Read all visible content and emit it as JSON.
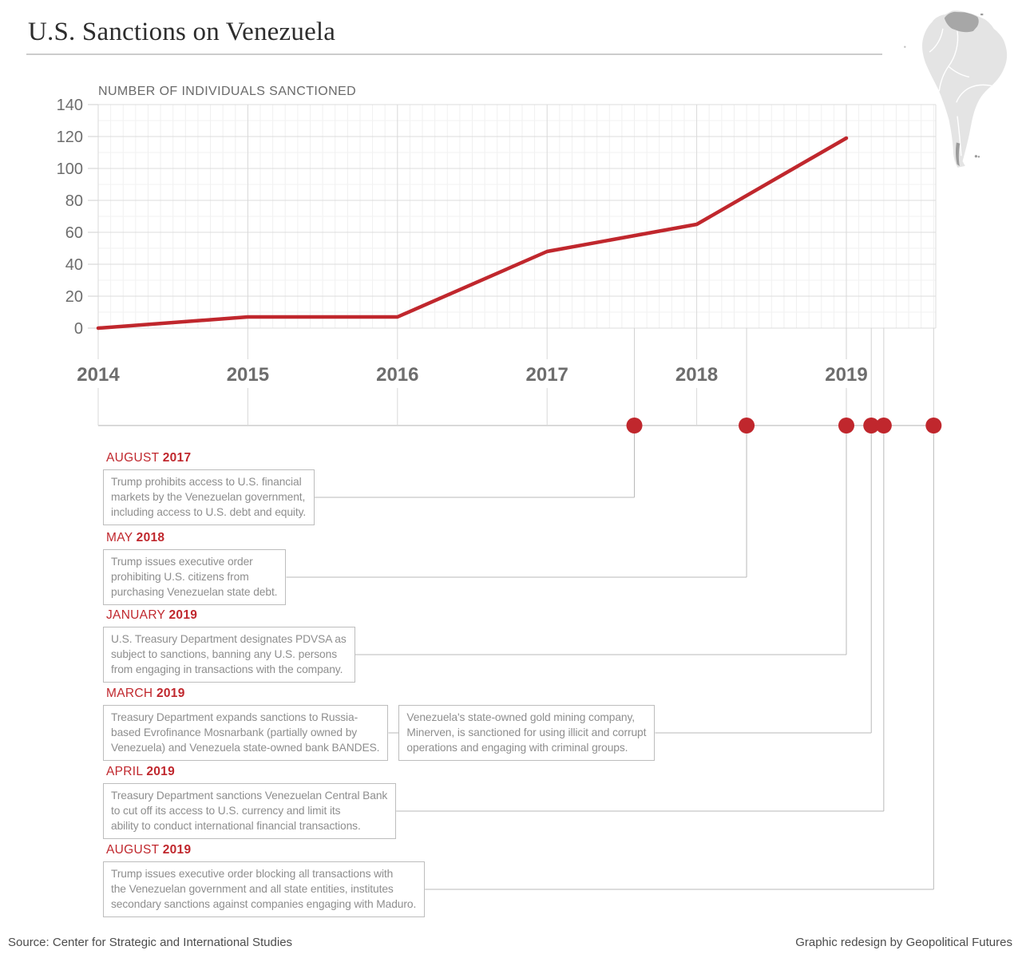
{
  "title": "U.S. Sanctions on Venezuela",
  "chart_data": {
    "type": "line",
    "title": "NUMBER OF INDIVIDUALS SANCTIONED",
    "x": [
      2014,
      2015,
      2016,
      2017,
      2018,
      2019
    ],
    "values": [
      0,
      7,
      7,
      48,
      65,
      119
    ],
    "x_tick_labels": [
      "2014",
      "2015",
      "2016",
      "2017",
      "2018",
      "2019"
    ],
    "y_ticks": [
      0,
      20,
      40,
      60,
      80,
      100,
      120,
      140
    ],
    "ylim": [
      0,
      140
    ],
    "grid": true,
    "legend": "none",
    "line_color": "#c0272d"
  },
  "map": {
    "name": "south-america-highlight-venezuela",
    "continent_color": "#e4e4e4",
    "venezuela_color": "#a7a7a7",
    "border_color": "#ffffff"
  },
  "timeline": {
    "dot_color": "#c0272d",
    "events": [
      {
        "month": "AUGUST",
        "year": "2017",
        "text": "Trump prohibits access to U.S. financial\nmarkets by the Venezuelan government,\nincluding access to U.S. debt and equity."
      },
      {
        "month": "MAY",
        "year": "2018",
        "text": "Trump issues executive order\nprohibiting U.S. citizens from\npurchasing Venezuelan state debt."
      },
      {
        "month": "JANUARY",
        "year": "2019",
        "text": "U.S. Treasury Department designates PDVSA as\nsubject to sanctions, banning any U.S. persons\nfrom engaging in transactions with the company."
      },
      {
        "month": "MARCH",
        "year": "2019",
        "text": "Treasury Department expands sanctions to Russia-\nbased Evrofinance Mosnarbank (partially owned by\nVenezuela) and Venezuela state-owned bank BANDES.",
        "text2": "Venezuela's state-owned gold mining company,\nMinerven, is sanctioned for using illicit and corrupt\noperations and engaging with criminal groups."
      },
      {
        "month": "APRIL",
        "year": "2019",
        "text": "Treasury Department sanctions Venezuelan Central Bank\nto cut off its access to U.S. currency and limit its\nability to conduct international financial transactions."
      },
      {
        "month": "AUGUST",
        "year": "2019",
        "text": "Trump issues executive order blocking all transactions with\nthe Venezuelan government and all state entities, institutes\nsecondary sanctions against companies engaging with Maduro."
      }
    ]
  },
  "footer": {
    "source": "Source: Center for Strategic and International Studies",
    "credit": "Graphic redesign by Geopolitical Futures"
  }
}
